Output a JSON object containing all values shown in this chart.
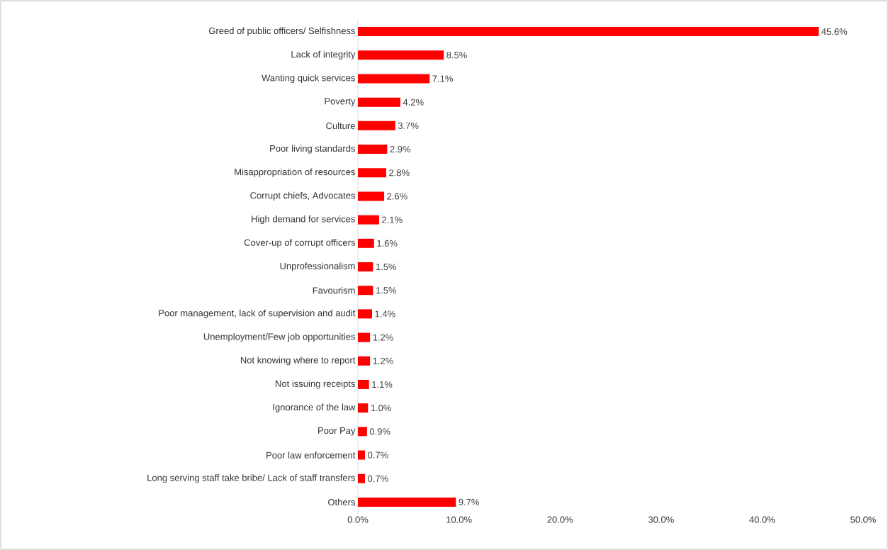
{
  "chart_data": {
    "type": "bar",
    "orientation": "horizontal",
    "categories": [
      "Greed of public officers/ Selfishness",
      "Lack of integrity",
      "Wanting quick services",
      "Poverty",
      "Culture",
      "Poor living standards",
      "Misappropriation of resources",
      "Corrupt chiefs, Advocates",
      "High demand for services",
      "Cover-up of corrupt officers",
      "Unprofessionalism",
      "Favourism",
      "Poor management, lack of supervision and audit",
      "Unemployment/Few job opportunities",
      "Not knowing where to report",
      "Not issuing receipts",
      "Ignorance of the law",
      "Poor Pay",
      "Poor law enforcement",
      "Long serving staff take bribe/ Lack of staff transfers",
      "Others"
    ],
    "values": [
      45.6,
      8.5,
      7.1,
      4.2,
      3.7,
      2.9,
      2.8,
      2.6,
      2.1,
      1.6,
      1.5,
      1.5,
      1.4,
      1.2,
      1.2,
      1.1,
      1.0,
      0.9,
      0.7,
      0.7,
      9.7
    ],
    "value_labels": [
      "45.6%",
      "8.5%",
      "7.1%",
      "4.2%",
      "3.7%",
      "2.9%",
      "2.8%",
      "2.6%",
      "2.1%",
      "1.6%",
      "1.5%",
      "1.5%",
      "1.4%",
      "1.2%",
      "1.2%",
      "1.1%",
      "1.0%",
      "0.9%",
      "0.7%",
      "0.7%",
      "9.7%"
    ],
    "color": "#ff0000",
    "xlim": [
      0,
      50
    ],
    "xticks": [
      {
        "value": 0,
        "label": "0.0%"
      },
      {
        "value": 10,
        "label": "10.0%"
      },
      {
        "value": 20,
        "label": "20.0%"
      },
      {
        "value": 30,
        "label": "30.0%"
      },
      {
        "value": 40,
        "label": "40.0%"
      },
      {
        "value": 50,
        "label": "50.0%"
      }
    ]
  }
}
